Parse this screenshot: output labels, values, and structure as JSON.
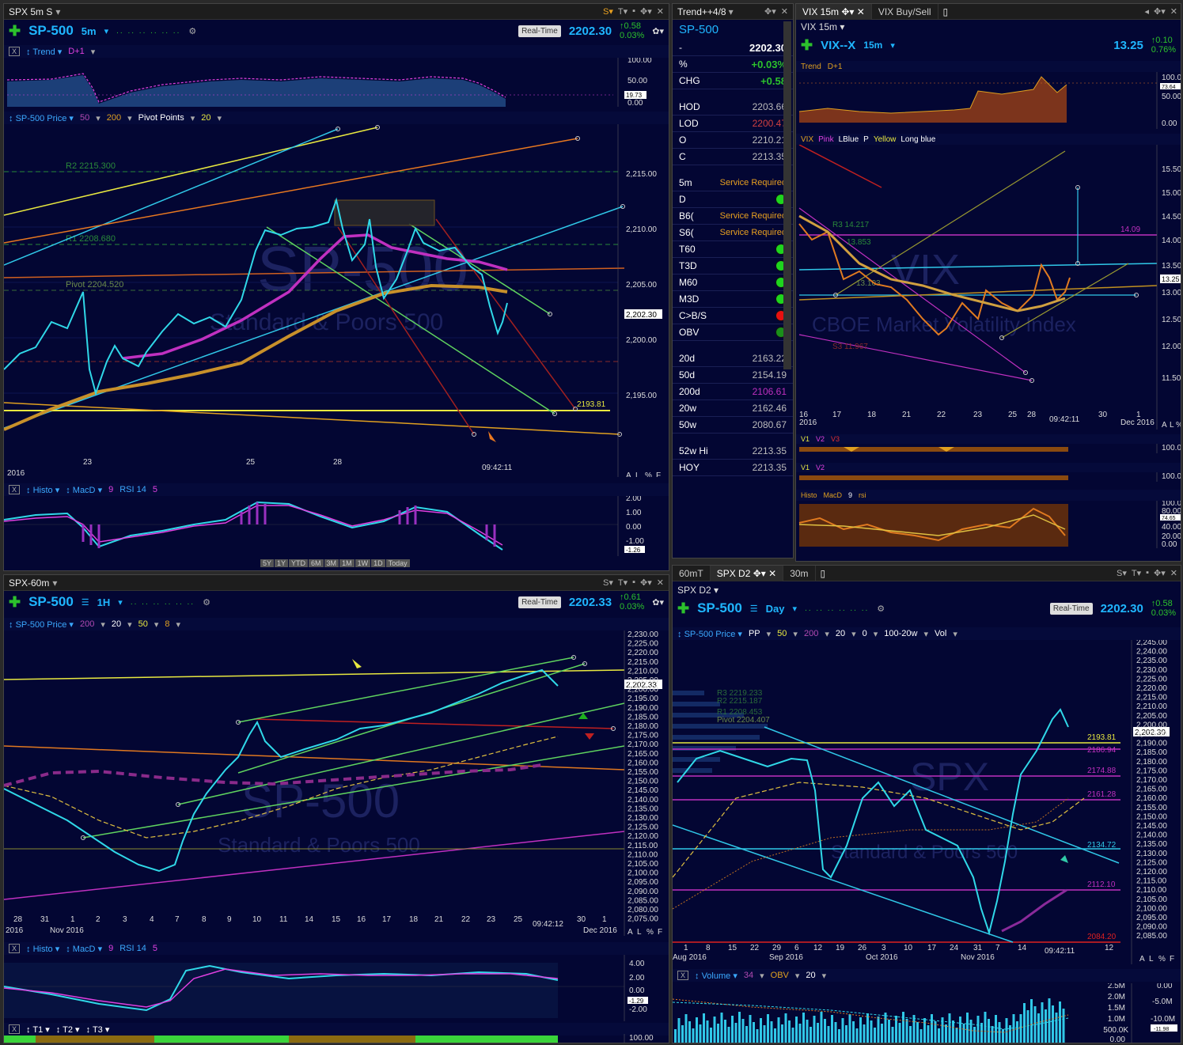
{
  "panel_tl": {
    "title": "SPX 5m S",
    "symbol": "SP-500",
    "interval": "5m",
    "realtime": "Real-Time",
    "last": "2202.30",
    "change": "0.58",
    "change_pct": "0.03%",
    "trend_bar": {
      "name": "Trend",
      "param": "D+1",
      "scale": [
        "100.00",
        "50.00",
        "19.73",
        "0.00"
      ]
    },
    "price_bar": {
      "name": "SP-500 Price",
      "ma1": "50",
      "ma2": "200",
      "study": "Pivot Points",
      "param": "20"
    },
    "levels": {
      "r2": "R2 2215.300",
      "r1": "R1 2208.680",
      "pivot": "Pivot 2204.520",
      "yellow": "2193.81"
    },
    "y_ticks": [
      "2,215.00",
      "2,210.00",
      "2,205.00",
      "2,200.00",
      "2,195.00"
    ],
    "x_ticks": [
      "23",
      "25",
      "28"
    ],
    "year": "2016",
    "time": "09:42:11",
    "price_tag": "2,202.30",
    "scale_btns": [
      "A",
      "L",
      "%",
      "F"
    ],
    "histo_bar": {
      "name": "Histo",
      "macd": "MacD",
      "macd_p": "9",
      "rsi": "RSI 14",
      "rsi_p": "5"
    },
    "histo_scale": [
      "2.00",
      "1.00",
      "0.00",
      "-1.00",
      "-1.26"
    ],
    "ranges": [
      "5Y",
      "1Y",
      "YTD",
      "6M",
      "3M",
      "1M",
      "1W",
      "1D",
      "Today"
    ],
    "watermark": "SP-500",
    "watermark_sub": "Standard & Poors 500"
  },
  "quote": {
    "title": "Trend++4/8",
    "symbol": "SP-500",
    "rows_top": [
      {
        "label": "-",
        "value": "2202.30"
      },
      {
        "label": "%",
        "value": "+0.03%"
      },
      {
        "label": "CHG",
        "value": "+0.58"
      }
    ],
    "rows_hl": [
      {
        "label": "HOD",
        "value": "2203.66"
      },
      {
        "label": "LOD",
        "value": "2200.47"
      },
      {
        "label": "O",
        "value": "2210.21"
      },
      {
        "label": "C",
        "value": "2213.35"
      }
    ],
    "rows_sig": [
      {
        "label": "5m",
        "service": "Service Required"
      },
      {
        "label": "D",
        "dot": "g"
      },
      {
        "label": "B6(",
        "service": "Service Required"
      },
      {
        "label": "S6(",
        "service": "Service Required"
      },
      {
        "label": "T60",
        "dot": "g"
      },
      {
        "label": "T3D",
        "dot": "g"
      },
      {
        "label": "M60",
        "dot": "g"
      },
      {
        "label": "M3D",
        "dot": "g"
      },
      {
        "label": "C>B/S",
        "dot": "r"
      },
      {
        "label": "OBV",
        "dot": "dg"
      }
    ],
    "rows_ma": [
      {
        "label": "20d",
        "value": "2163.22"
      },
      {
        "label": "50d",
        "value": "2154.19"
      },
      {
        "label": "200d",
        "value": "2106.61"
      },
      {
        "label": "20w",
        "value": "2162.46"
      },
      {
        "label": "50w",
        "value": "2080.67"
      }
    ],
    "rows_hi": [
      {
        "label": "52w Hi",
        "value": "2213.35"
      },
      {
        "label": "HOY",
        "value": "2213.35"
      }
    ]
  },
  "panel_tr": {
    "tabs": [
      "VIX 15m",
      "VIX Buy/Sell"
    ],
    "title": "VIX 15m",
    "symbol": "VIX--X",
    "interval": "15m",
    "last": "13.25",
    "change": "0.10",
    "change_pct": "0.76%",
    "trend_bar": {
      "name": "Trend",
      "param": "D+1"
    },
    "trend_scale": [
      "100.00",
      "73.64",
      "50.00",
      "0.00"
    ],
    "legend": {
      "vix": "VIX",
      "pink": "Pink",
      "lblue": "LBlue",
      "p": "P",
      "yellow": "Yellow",
      "longblue": "Long blue"
    },
    "levels": {
      "r3": "R3 14.217",
      "r2": "13.853",
      "pivot": "13.103",
      "s3": "S3 11.967",
      "magenta": "14.09"
    },
    "y_ticks": [
      "15.50",
      "15.00",
      "14.50",
      "14.00",
      "13.50",
      "13.00",
      "12.50",
      "12.00",
      "11.50"
    ],
    "price_tag": "13.25",
    "x_ticks": [
      "16",
      "17",
      "18",
      "21",
      "22",
      "23",
      "25",
      "28",
      "30",
      "1"
    ],
    "year": "2016",
    "month_end": "Dec 2016",
    "time": "09:42:11",
    "scale_btns": [
      "A",
      "L",
      "%"
    ],
    "v_bar1": {
      "v1": "V1",
      "v2": "V2",
      "v3": "V3",
      "scale": "100.00"
    },
    "v_bar2": {
      "v1": "V1",
      "v2": "V2",
      "scale": "100.00"
    },
    "histo_bar": {
      "name": "Histo",
      "macd": "MacD",
      "macd_p": "9",
      "rsi": "rsi"
    },
    "histo_scale": [
      "100.00",
      "80.00",
      "74.65",
      "40.00",
      "20.00",
      "0.00"
    ],
    "watermark": "VIX",
    "watermark_sub": "CBOE Market Volatility Index"
  },
  "panel_bl": {
    "title": "SPX-60m",
    "symbol": "SP-500",
    "interval": "1H",
    "realtime": "Real-Time",
    "last": "2202.33",
    "change": "0.61",
    "change_pct": "0.03%",
    "price_bar": {
      "name": "SP-500 Price",
      "p1": "200",
      "p2": "20",
      "p3": "50",
      "p4": "8"
    },
    "y_ticks": [
      "2,230.00",
      "2,225.00",
      "2,220.00",
      "2,215.00",
      "2,210.00",
      "2,205.00",
      "2,200.00",
      "2,195.00",
      "2,190.00",
      "2,185.00",
      "2,180.00",
      "2,175.00",
      "2,170.00",
      "2,165.00",
      "2,160.00",
      "2,155.00",
      "2,150.00",
      "2,145.00",
      "2,140.00",
      "2,135.00",
      "2,130.00",
      "2,125.00",
      "2,120.00",
      "2,115.00",
      "2,110.00",
      "2,105.00",
      "2,100.00",
      "2,095.00",
      "2,090.00",
      "2,085.00",
      "2,080.00",
      "2,075.00"
    ],
    "price_tag": "2,202.33",
    "x_ticks": [
      "28",
      "31",
      "1",
      "2",
      "3",
      "4",
      "7",
      "8",
      "9",
      "10",
      "11",
      "14",
      "15",
      "16",
      "17",
      "18",
      "21",
      "22",
      "23",
      "25",
      "30",
      "1"
    ],
    "year": "2016",
    "month1": "Nov 2016",
    "month2": "Dec 2016",
    "time": "09:42:12",
    "scale_btns": [
      "A",
      "L",
      "%",
      "F"
    ],
    "histo_bar": {
      "name": "Histo",
      "macd": "MacD",
      "macd_p": "9",
      "rsi": "RSI 14",
      "rsi_p": "5"
    },
    "histo_scale": [
      "4.00",
      "2.00",
      "0.00",
      "-1.29",
      "-2.00"
    ],
    "t_bar": {
      "t1": "T1",
      "t2": "T2",
      "t3": "T3",
      "scale": "100.00"
    },
    "watermark": "SP-500",
    "watermark_sub": "Standard & Poors 500"
  },
  "panel_br": {
    "tabs": [
      "60mT",
      "SPX D2",
      "30m"
    ],
    "title": "SPX D2",
    "symbol": "SP-500",
    "interval": "Day",
    "realtime": "Real-Time",
    "last": "2202.30",
    "change": "0.58",
    "change_pct": "0.03%",
    "price_bar": {
      "name": "SP-500 Price",
      "pp": "PP",
      "p1": "50",
      "p2": "200",
      "p3": "20",
      "p4": "0",
      "p5": "100-20w",
      "vol": "Vol"
    },
    "levels": {
      "r3": "R3 2219.233",
      "r2": "R2 2215.187",
      "r1": "R1 2208.453",
      "pivot": "Pivot 2204.407",
      "l1": "2193.81",
      "l2": "2186.94",
      "l3": "2174.88",
      "l4": "2161.28",
      "l5": "2134.72",
      "l6": "2112.10",
      "l7": "2084.20"
    },
    "y_ticks": [
      "2,245.00",
      "2,240.00",
      "2,235.00",
      "2,230.00",
      "2,225.00",
      "2,220.00",
      "2,215.00",
      "2,210.00",
      "2,205.00",
      "2,200.00",
      "2,195.00",
      "2,190.00",
      "2,185.00",
      "2,180.00",
      "2,175.00",
      "2,170.00",
      "2,165.00",
      "2,160.00",
      "2,155.00",
      "2,150.00",
      "2,145.00",
      "2,140.00",
      "2,135.00",
      "2,130.00",
      "2,125.00",
      "2,120.00",
      "2,115.00",
      "2,110.00",
      "2,105.00",
      "2,100.00",
      "2,095.00",
      "2,090.00",
      "2,085.00"
    ],
    "price_tag": "2,202.30",
    "x_ticks": [
      "1",
      "8",
      "15",
      "22",
      "29",
      "6",
      "12",
      "19",
      "26",
      "3",
      "10",
      "17",
      "24",
      "31",
      "7",
      "14",
      "12"
    ],
    "months": [
      "Aug 2016",
      "Sep 2016",
      "Oct 2016",
      "Nov 2016"
    ],
    "time": "09:42:11",
    "scale_btns": [
      "A",
      "L",
      "%",
      "F"
    ],
    "vol_bar": {
      "name": "Volume",
      "p1": "34",
      "obv": "OBV",
      "p2": "20"
    },
    "vol_scale": [
      "2.5M",
      "2.0M",
      "1.5M",
      "1.0M",
      "500.0K",
      "0.00"
    ],
    "obv_scale": [
      "0.00",
      "-5.0M",
      "-10.0M",
      "-11.98"
    ],
    "watermark": "SPX",
    "watermark_sub": "Standard & Poors 500"
  }
}
